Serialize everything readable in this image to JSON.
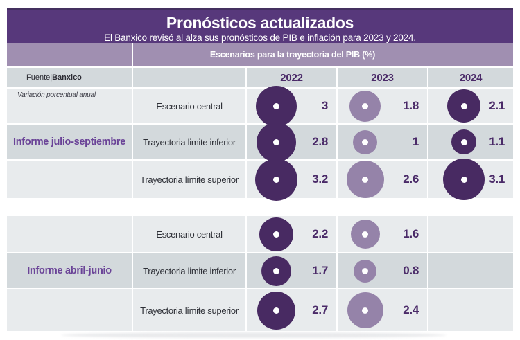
{
  "header": {
    "title": "Pronósticos actualizados",
    "subtitle": "El Banxico revisó al alza sus pronósticos de PIB e inflación para 2023 y 2024."
  },
  "band": {
    "label": "Escenarios para la trayectoria del PIB (%)"
  },
  "source": {
    "prefix": "Fuente",
    "separator": "|",
    "name": "Banxico"
  },
  "note": "Variación porcentual anual",
  "colors": {
    "header_purple": "#57387b",
    "header_edge": "#44305f",
    "band_purple": "#a08fb1",
    "row_light": "#e8ebed",
    "row_dark": "#d3d9dc",
    "accent_text": "#4a2a68",
    "informe_text": "#6a4397",
    "bubble_dark": "#482a62",
    "bubble_light": "#9583a9"
  },
  "chart_data": {
    "type": "bubble",
    "title": "Pronósticos actualizados",
    "subtitle": "El Banxico revisó al alza sus pronósticos de PIB e inflación para 2023 y 2024.",
    "group_header": "Escenarios para la trayectoria del PIB (%)",
    "unit_note": "Variación porcentual anual",
    "source": "Fuente|Banxico",
    "columns": [
      "2022",
      "2023",
      "2024"
    ],
    "column_styles": {
      "2022": "dark",
      "2023": "light",
      "2024": "dark"
    },
    "groups": [
      {
        "name": "Informe julio-septiembre",
        "rows": [
          {
            "label": "Escenario central",
            "values": [
              3,
              1.8,
              2.1
            ]
          },
          {
            "label": "Trayectoria limite inferior",
            "values": [
              2.8,
              1,
              1.1
            ]
          },
          {
            "label": "Trayectoria límite superior",
            "values": [
              3.2,
              2.6,
              3.1
            ]
          }
        ]
      },
      {
        "name": "Informe abril-junio",
        "rows": [
          {
            "label": "Escenario central",
            "values": [
              2.2,
              1.6,
              null
            ]
          },
          {
            "label": "Trayectoria limite inferior",
            "values": [
              1.7,
              0.8,
              null
            ]
          },
          {
            "label": "Trayectoria límite superior",
            "values": [
              2.7,
              2.4,
              null
            ]
          }
        ]
      }
    ]
  }
}
